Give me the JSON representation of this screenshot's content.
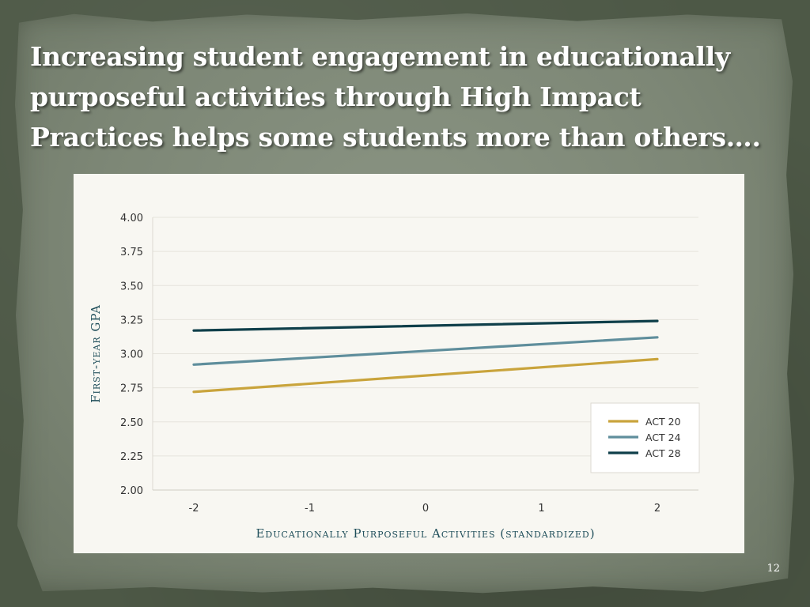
{
  "slide": {
    "title": "Increasing student engagement in educationally purposeful activities through High Impact Practices helps some students more than others….",
    "page_number": "12"
  },
  "chart_data": {
    "type": "line",
    "xlabel": "Educationally Purposeful Activities (standardized)",
    "ylabel": "First-year GPA",
    "x": [
      -2,
      2
    ],
    "x_ticks": [
      "-2",
      "-1",
      "0",
      "1",
      "2"
    ],
    "y_ticks": [
      "2.00",
      "2.25",
      "2.50",
      "2.75",
      "3.00",
      "3.25",
      "3.50",
      "3.75",
      "4.00"
    ],
    "xlim": [
      -2,
      2
    ],
    "ylim": [
      2.0,
      4.0
    ],
    "grid": true,
    "legend_position": "bottom-right",
    "series": [
      {
        "name": "ACT 20",
        "color": "#c9a43c",
        "values": [
          2.72,
          2.96
        ]
      },
      {
        "name": "ACT 24",
        "color": "#5f8e9c",
        "values": [
          2.92,
          3.12
        ]
      },
      {
        "name": "ACT 28",
        "color": "#0f3f4a",
        "values": [
          3.17,
          3.24
        ]
      }
    ]
  }
}
